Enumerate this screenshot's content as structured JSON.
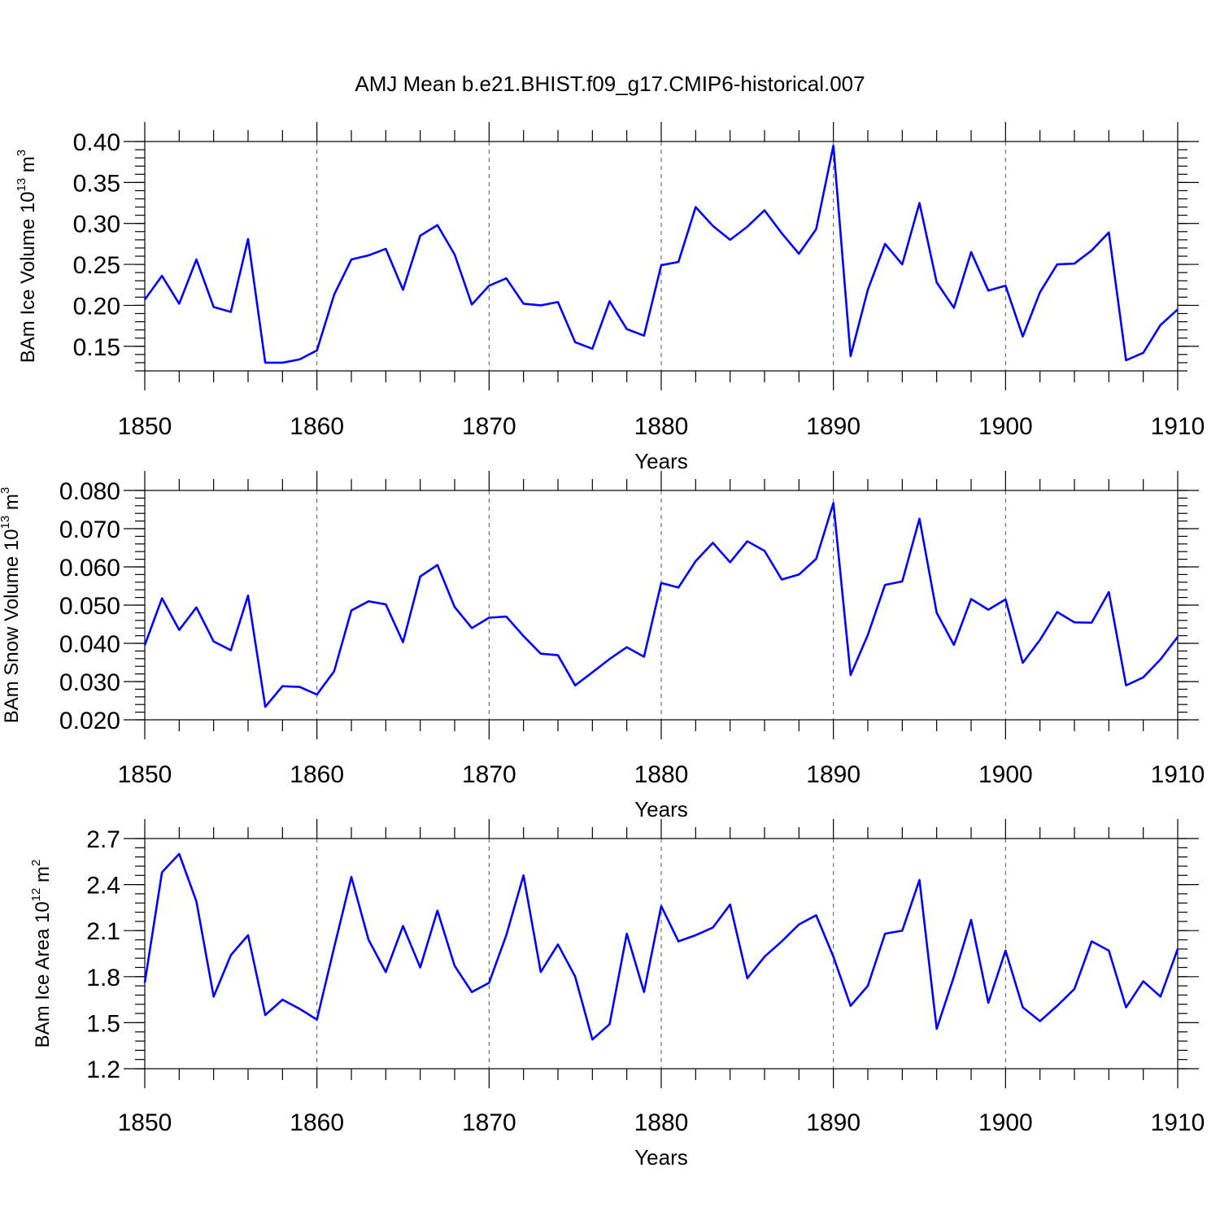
{
  "chart_data": {
    "title": "AMJ Mean b.e21.BHIST.f09_g17.CMIP6-historical.007",
    "panels": [
      {
        "type": "line",
        "name": "ice-volume",
        "ylabel_prefix": "BAm Ice Volume 10",
        "ylabel_exp": "13",
        "ylabel_unit": " m",
        "ylabel_unit_exp": "3",
        "xlabel": "Years",
        "xlim": [
          1850,
          1910
        ],
        "ylim": [
          0.12,
          0.4
        ],
        "yticks": [
          0.15,
          0.2,
          0.25,
          0.3,
          0.35,
          0.4
        ],
        "ytick_labels": [
          "0.15",
          "0.20",
          "0.25",
          "0.30",
          "0.35",
          "0.40"
        ],
        "yminor_step": 0.01,
        "xticks": [
          1850,
          1860,
          1870,
          1880,
          1890,
          1900,
          1910
        ],
        "xtick_labels": [
          "1850",
          "1860",
          "1870",
          "1880",
          "1890",
          "1900",
          "1910"
        ],
        "x_start": 1850,
        "values": [
          0.207,
          0.236,
          0.202,
          0.256,
          0.198,
          0.192,
          0.281,
          0.13,
          0.13,
          0.134,
          0.145,
          0.213,
          0.256,
          0.261,
          0.269,
          0.219,
          0.285,
          0.298,
          0.262,
          0.201,
          0.224,
          0.233,
          0.202,
          0.2,
          0.204,
          0.155,
          0.147,
          0.205,
          0.171,
          0.163,
          0.249,
          0.253,
          0.32,
          0.297,
          0.28,
          0.296,
          0.316,
          0.288,
          0.263,
          0.293,
          0.395,
          0.138,
          0.219,
          0.275,
          0.25,
          0.325,
          0.228,
          0.197,
          0.265,
          0.218,
          0.224,
          0.162,
          0.216,
          0.25,
          0.251,
          0.267,
          0.289,
          0.133,
          0.142,
          0.176,
          0.195
        ]
      },
      {
        "type": "line",
        "name": "snow-volume",
        "ylabel_prefix": "BAm Snow Volume 10",
        "ylabel_exp": "13",
        "ylabel_unit": " m",
        "ylabel_unit_exp": "3",
        "xlabel": "Years",
        "xlim": [
          1850,
          1910
        ],
        "ylim": [
          0.02,
          0.08
        ],
        "yticks": [
          0.02,
          0.03,
          0.04,
          0.05,
          0.06,
          0.07,
          0.08
        ],
        "ytick_labels": [
          "0.020",
          "0.030",
          "0.040",
          "0.050",
          "0.060",
          "0.070",
          "0.080"
        ],
        "yminor_step": 0.002,
        "xticks": [
          1850,
          1860,
          1870,
          1880,
          1890,
          1900,
          1910
        ],
        "xtick_labels": [
          "1850",
          "1860",
          "1870",
          "1880",
          "1890",
          "1900",
          "1910"
        ],
        "x_start": 1850,
        "values": [
          0.0395,
          0.0518,
          0.0435,
          0.0494,
          0.0405,
          0.0382,
          0.0525,
          0.0234,
          0.0288,
          0.0286,
          0.0266,
          0.0327,
          0.0486,
          0.051,
          0.0502,
          0.0403,
          0.0575,
          0.0605,
          0.0495,
          0.044,
          0.0467,
          0.047,
          0.0419,
          0.0373,
          0.0369,
          0.029,
          0.0324,
          0.0359,
          0.039,
          0.0365,
          0.0558,
          0.0546,
          0.0615,
          0.0663,
          0.0612,
          0.0667,
          0.0642,
          0.0567,
          0.058,
          0.0621,
          0.0767,
          0.0317,
          0.0422,
          0.0553,
          0.0562,
          0.0726,
          0.048,
          0.0396,
          0.0516,
          0.0488,
          0.0515,
          0.0349,
          0.0409,
          0.0482,
          0.0455,
          0.0454,
          0.0534,
          0.029,
          0.0311,
          0.0358,
          0.0417
        ]
      },
      {
        "type": "line",
        "name": "ice-area",
        "ylabel_prefix": "BAm Ice Area 10",
        "ylabel_exp": "12",
        "ylabel_unit": " m",
        "ylabel_unit_exp": "2",
        "xlabel": "Years",
        "xlim": [
          1850,
          1910
        ],
        "ylim": [
          1.2,
          2.7
        ],
        "yticks": [
          1.2,
          1.5,
          1.8,
          2.1,
          2.4,
          2.7
        ],
        "ytick_labels": [
          "1.2",
          "1.5",
          "1.8",
          "2.1",
          "2.4",
          "2.7"
        ],
        "yminor_step": 0.06,
        "xticks": [
          1850,
          1860,
          1870,
          1880,
          1890,
          1900,
          1910
        ],
        "xtick_labels": [
          "1850",
          "1860",
          "1870",
          "1880",
          "1890",
          "1900",
          "1910"
        ],
        "x_start": 1850,
        "values": [
          1.76,
          2.48,
          2.6,
          2.29,
          1.67,
          1.94,
          2.07,
          1.55,
          1.65,
          1.59,
          1.52,
          1.99,
          2.45,
          2.04,
          1.83,
          2.13,
          1.86,
          2.23,
          1.87,
          1.7,
          1.76,
          2.07,
          2.46,
          1.83,
          2.01,
          1.8,
          1.39,
          1.49,
          2.08,
          1.7,
          2.26,
          2.03,
          2.07,
          2.12,
          2.27,
          1.79,
          1.93,
          2.03,
          2.14,
          2.2,
          1.93,
          1.61,
          1.74,
          2.08,
          2.1,
          2.43,
          1.46,
          1.8,
          2.17,
          1.63,
          1.97,
          1.6,
          1.51,
          1.61,
          1.72,
          2.03,
          1.97,
          1.6,
          1.77,
          1.67,
          1.98
        ]
      }
    ]
  }
}
